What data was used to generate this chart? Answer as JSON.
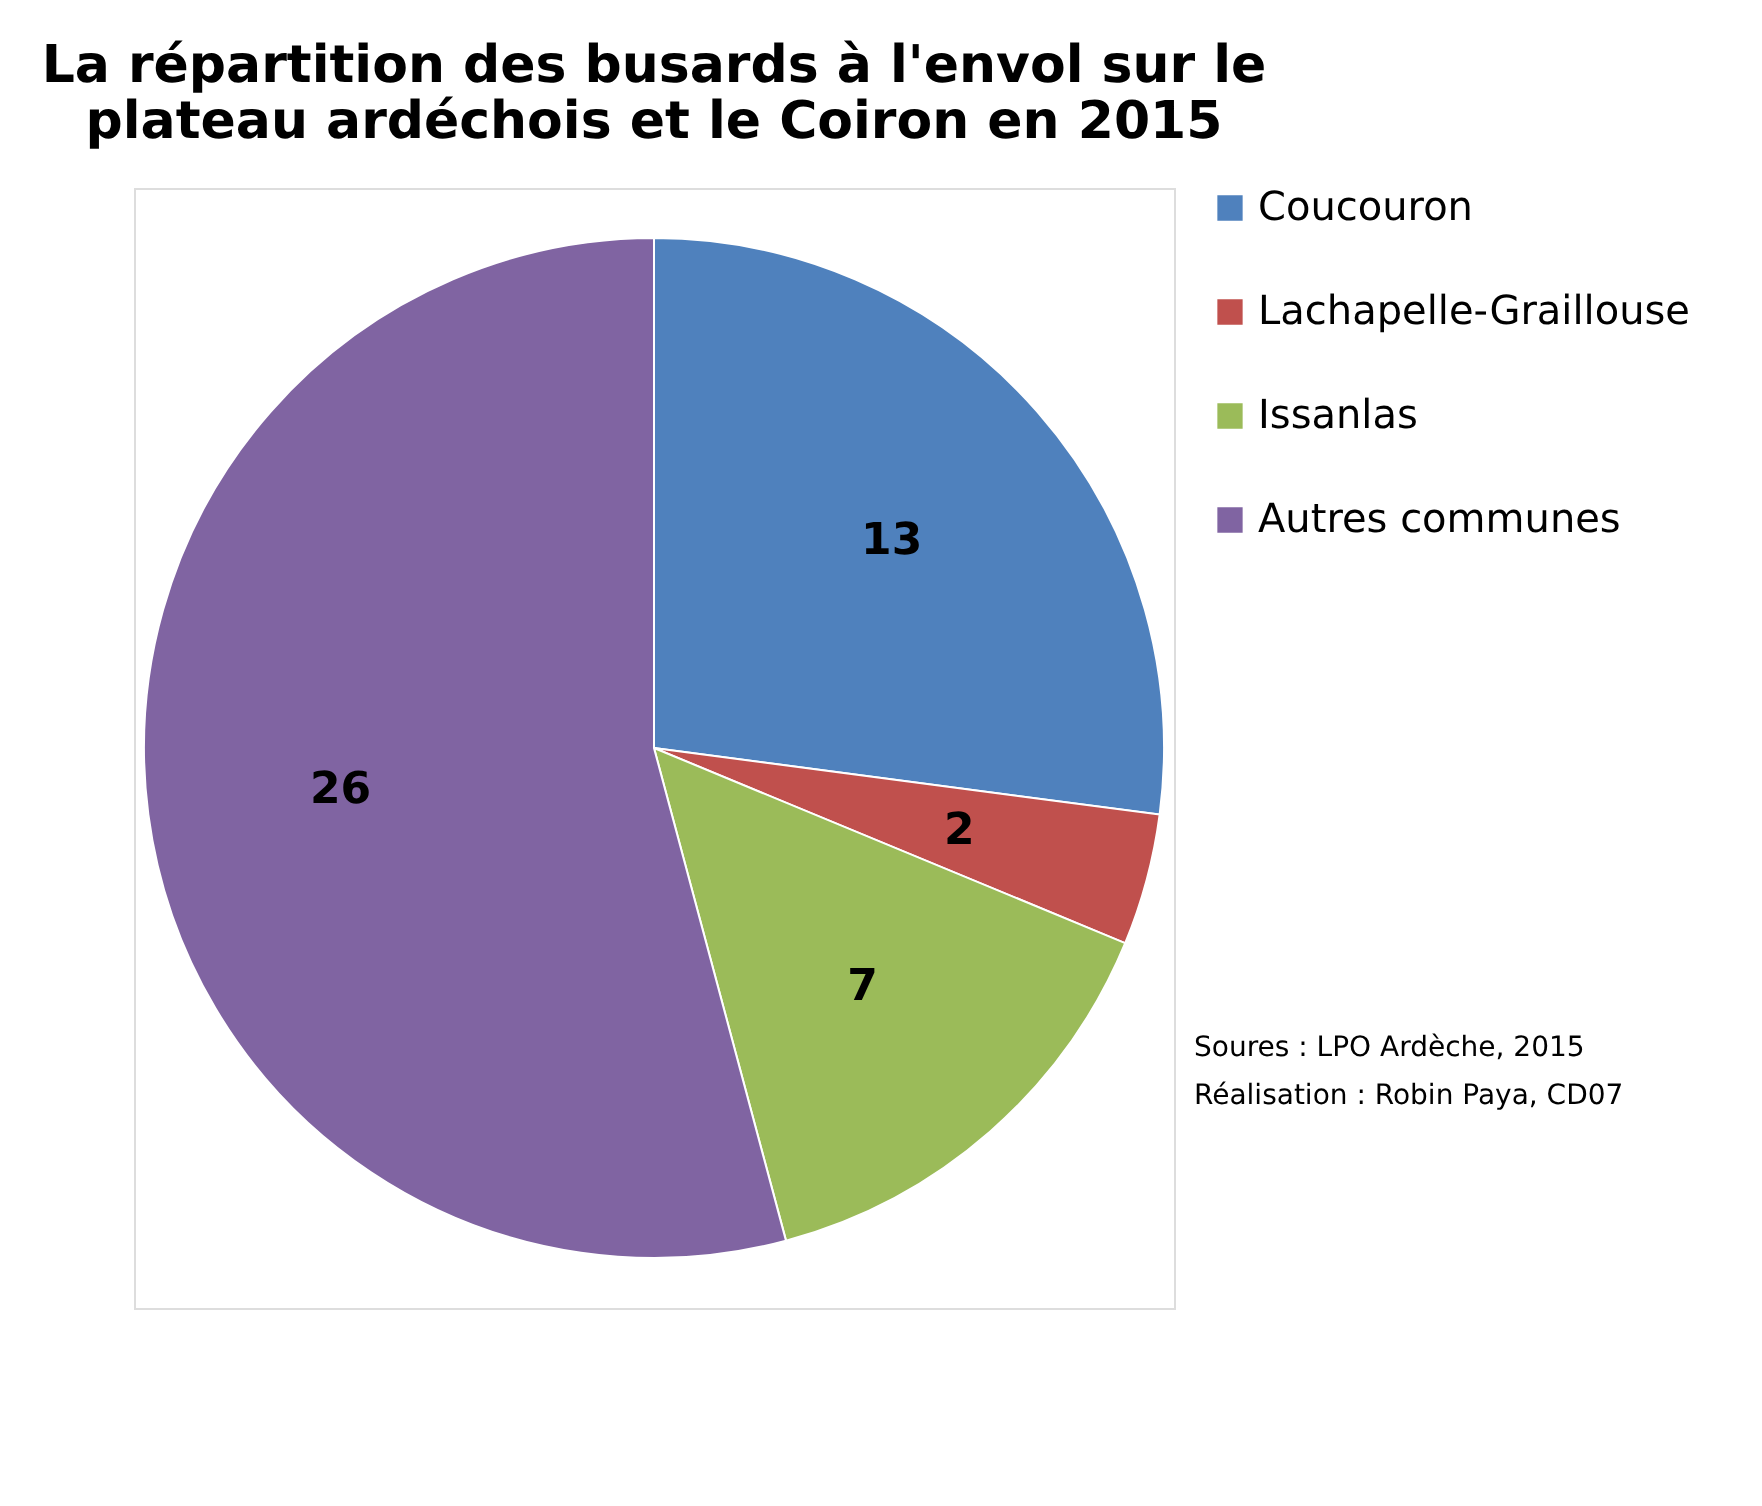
{
  "chart_data": {
    "type": "pie",
    "title": "La répartition des busards à l'envol sur le plateau ardéchois et le Coiron en 2015",
    "categories": [
      "Coucouron",
      "Lachapelle-Graillouse",
      "Issanlas",
      "Autres communes"
    ],
    "values": [
      13,
      2,
      7,
      26
    ],
    "colors": [
      "#4f81bd",
      "#c0504d",
      "#9bbb59",
      "#8064a2"
    ],
    "data_labels": true,
    "legend": "right",
    "annotations": [
      "Soures : LPO Ardèche, 2015",
      "Réalisation : Robin Paya, CD07"
    ]
  }
}
